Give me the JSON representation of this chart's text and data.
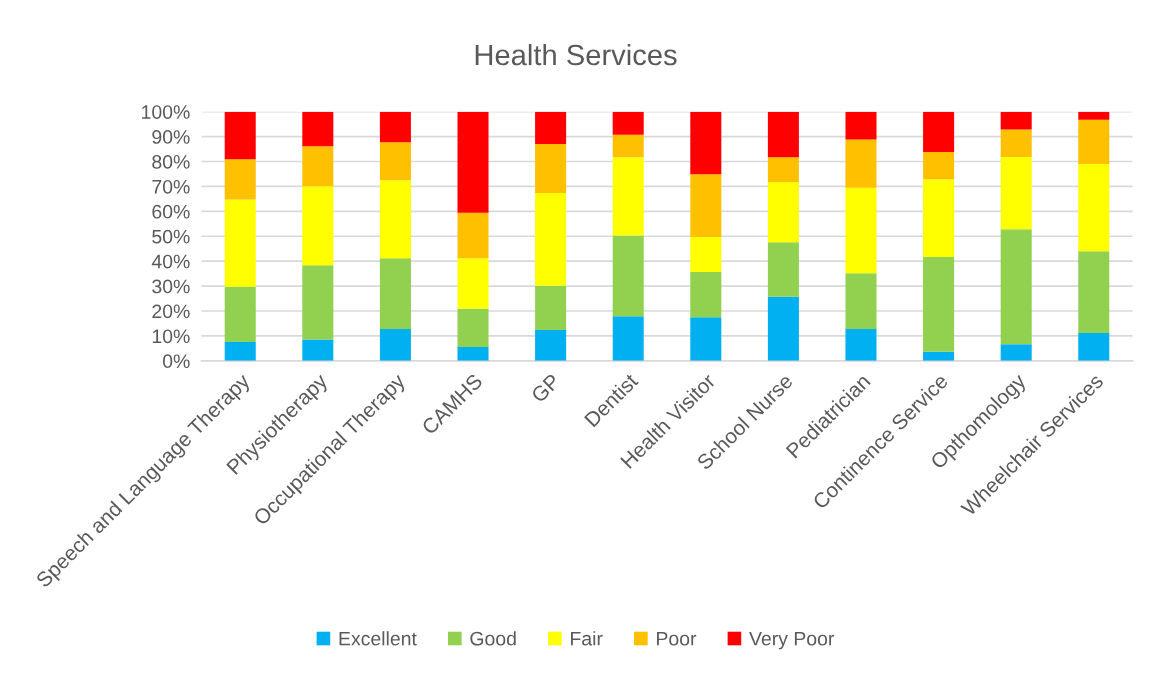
{
  "chart_data": {
    "type": "bar",
    "title": "Health Services",
    "stacked": true,
    "categories": [
      "Speech and Language Therapy",
      "Physiotherapy",
      "Occupational Therapy",
      "CAMHS",
      "GP",
      "Dentist",
      "Health Visitor",
      "School Nurse",
      "Pediatrician",
      "Continence Service",
      "Opthomology",
      "Wheelchair Services"
    ],
    "series": [
      {
        "name": "Excellent",
        "color": "#00b0f0",
        "values": [
          7.6,
          8.6,
          12.8,
          5.6,
          12.4,
          17.9,
          17.5,
          25.7,
          12.8,
          3.6,
          6.7,
          11.2
        ]
      },
      {
        "name": "Good",
        "color": "#92d050",
        "values": [
          22.1,
          29.8,
          28.4,
          15.3,
          17.7,
          32.4,
          18.2,
          21.9,
          22.4,
          38.1,
          46.1,
          32.8
        ]
      },
      {
        "name": "Fair",
        "color": "#ffff00",
        "values": [
          35.1,
          31.7,
          31.3,
          20.3,
          37.3,
          31.4,
          14.0,
          24.2,
          34.3,
          31.2,
          29.0,
          35.0
        ]
      },
      {
        "name": "Poor",
        "color": "#ffc000",
        "values": [
          16.1,
          16.0,
          15.2,
          18.2,
          19.6,
          9.1,
          25.2,
          9.9,
          19.3,
          10.9,
          11.1,
          17.8
        ]
      },
      {
        "name": "Very Poor",
        "color": "#ff0000",
        "values": [
          19.1,
          13.9,
          12.3,
          40.6,
          13.0,
          9.2,
          25.1,
          18.3,
          11.2,
          16.2,
          7.1,
          3.2
        ]
      }
    ],
    "ylim": [
      0,
      100
    ],
    "yticks": [
      {
        "value": 0,
        "label": "0%"
      },
      {
        "value": 10,
        "label": "10%"
      },
      {
        "value": 20,
        "label": "20%"
      },
      {
        "value": 30,
        "label": "30%"
      },
      {
        "value": 40,
        "label": "40%"
      },
      {
        "value": 50,
        "label": "50%"
      },
      {
        "value": 60,
        "label": "60%"
      },
      {
        "value": 70,
        "label": "70%"
      },
      {
        "value": 80,
        "label": "80%"
      },
      {
        "value": 90,
        "label": "90%"
      },
      {
        "value": 100,
        "label": "100%"
      }
    ],
    "grid": "y",
    "legend": "bottom"
  }
}
